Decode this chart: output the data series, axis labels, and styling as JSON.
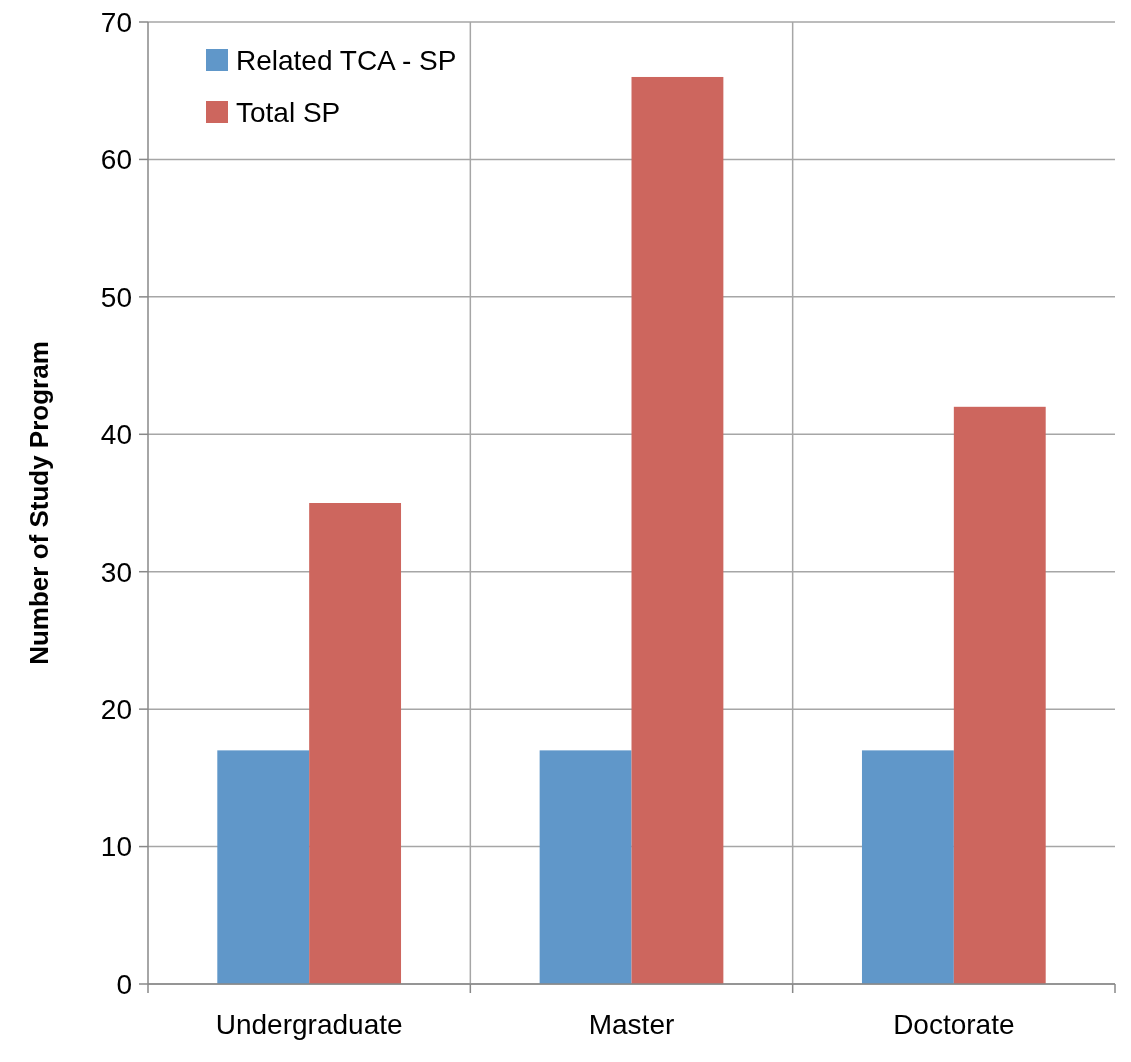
{
  "chart_data": {
    "type": "bar",
    "ylabel": "Number  of Study Program",
    "categories": [
      "Undergraduate",
      "Master",
      "Doctorate"
    ],
    "series": [
      {
        "name": "Related TCA - SP",
        "color": "#6097c9",
        "values": [
          17,
          17,
          17
        ]
      },
      {
        "name": "Total SP",
        "color": "#cd665e",
        "values": [
          35,
          66,
          42
        ]
      }
    ],
    "ylim": [
      0,
      70
    ],
    "yticks": [
      0,
      10,
      20,
      30,
      40,
      50,
      60,
      70
    ],
    "grid": true,
    "legend": "top left"
  }
}
